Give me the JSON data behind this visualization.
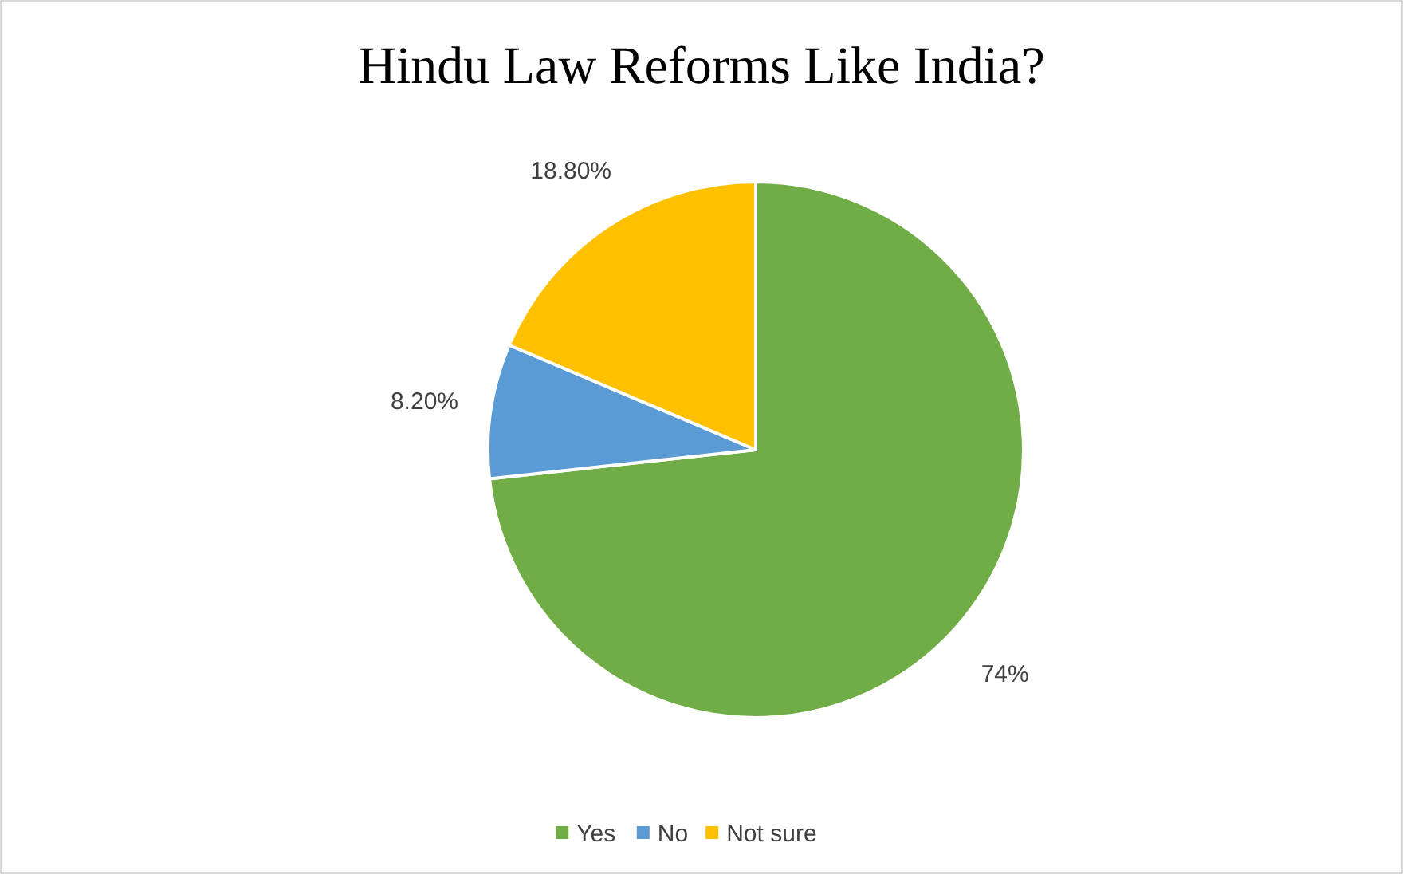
{
  "chart_data": {
    "type": "pie",
    "title": "Hindu Law Reforms Like India?",
    "categories": [
      "Yes",
      "No",
      "Not sure"
    ],
    "values": [
      74,
      8.2,
      18.8
    ],
    "colors": [
      "#70ad47",
      "#5b9bd5",
      "#ffc000"
    ],
    "value_labels": [
      "74%",
      "8.20%",
      "18.80%"
    ],
    "legend": "bottom"
  }
}
